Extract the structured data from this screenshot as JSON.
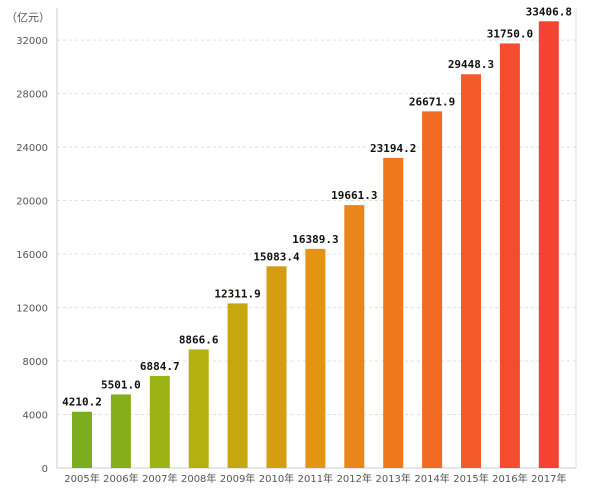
{
  "chart_data": {
    "type": "bar",
    "title": "",
    "xlabel": "",
    "ylabel": "",
    "unit_label": "（亿元）",
    "categories": [
      "2005年",
      "2006年",
      "2007年",
      "2008年",
      "2009年",
      "2010年",
      "2011年",
      "2012年",
      "2013年",
      "2014年",
      "2015年",
      "2016年",
      "2017年"
    ],
    "values": [
      4210.2,
      5501.0,
      6884.7,
      8866.6,
      12311.9,
      15083.4,
      16389.3,
      19661.3,
      23194.2,
      26671.9,
      29448.3,
      31750.0,
      33406.8
    ],
    "data_labels": [
      "4210.2",
      "5501.0",
      "6884.7",
      "8866.6",
      "12311.9",
      "15083.4",
      "16389.3",
      "19661.3",
      "23194.2",
      "26671.9",
      "29448.3",
      "31750.0",
      "33406.8"
    ],
    "ylim": [
      0,
      34400
    ],
    "yticks": [
      0,
      4000,
      8000,
      12000,
      16000,
      20000,
      24000,
      28000,
      32000
    ],
    "ytick_labels": [
      "0",
      "4000",
      "8000",
      "12000",
      "16000",
      "20000",
      "24000",
      "28000",
      "32000"
    ],
    "grid": "horizontal, dashed",
    "legend": "none",
    "colors": [
      "#7cad1e",
      "#86ad1a",
      "#9cb215",
      "#b3b010",
      "#c7a60e",
      "#d59d12",
      "#e39413",
      "#ea8619",
      "#ef781d",
      "#f16c22",
      "#f25c28",
      "#f34d2e",
      "#f44333"
    ]
  }
}
